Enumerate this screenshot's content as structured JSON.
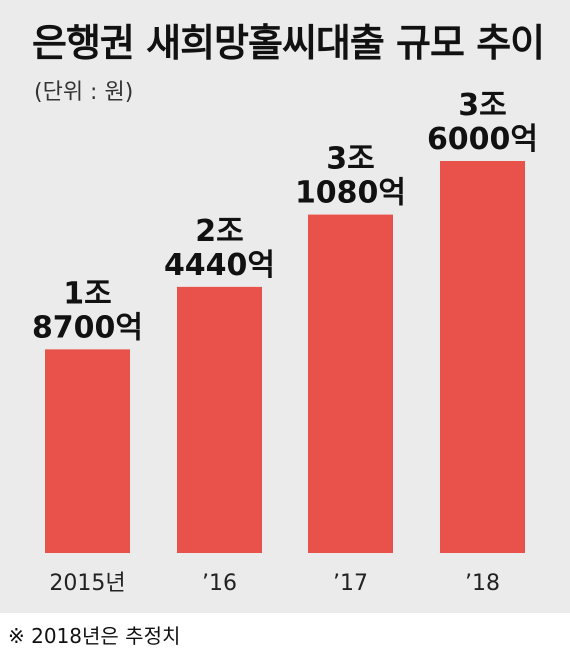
{
  "chart_data": {
    "type": "bar",
    "title": "은행권 새희망홀씨대출 규모 추이",
    "unit_label": "(단위 : 원)",
    "categories": [
      "2015년",
      "’16",
      "’17",
      "’18"
    ],
    "values": [
      18700,
      24440,
      31080,
      36000
    ],
    "value_unit": "억원",
    "data_labels": [
      [
        "1조",
        "8700억"
      ],
      [
        "2조",
        "4440억"
      ],
      [
        "3조",
        "1080억"
      ],
      [
        "3조",
        "6000억"
      ]
    ],
    "footnote": "※ 2018년은 추정치",
    "ylim": [
      0,
      40000
    ],
    "grid": false,
    "bar_color": "#e8524a",
    "background_color": "#ebebeb"
  }
}
